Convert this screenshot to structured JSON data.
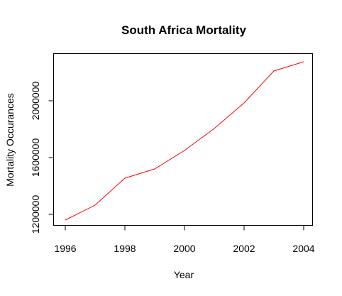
{
  "chart_data": {
    "type": "line",
    "title": "South Africa Mortality",
    "xlabel": "Year",
    "ylabel": "Mortality Occurances",
    "x": [
      1996,
      1997,
      1998,
      1999,
      2000,
      2001,
      2002,
      2003,
      2004
    ],
    "series": [
      {
        "color": "#ff0000",
        "values": [
          1160000,
          1265000,
          1455000,
          1520000,
          1650000,
          1805000,
          1985000,
          2210000,
          2275000
        ]
      }
    ],
    "xlim": [
      1996,
      2004
    ],
    "ylim": [
      1160000,
      2275000
    ],
    "xticks": [
      1996,
      1998,
      2000,
      2002,
      2004
    ],
    "yticks": [
      1200000,
      1600000,
      2000000
    ],
    "xtick_labels": [
      "1996",
      "1998",
      "2000",
      "2002",
      "2004"
    ],
    "ytick_labels": [
      "1200000",
      "1600000",
      "2000000"
    ],
    "grid": false,
    "legend": "none"
  }
}
